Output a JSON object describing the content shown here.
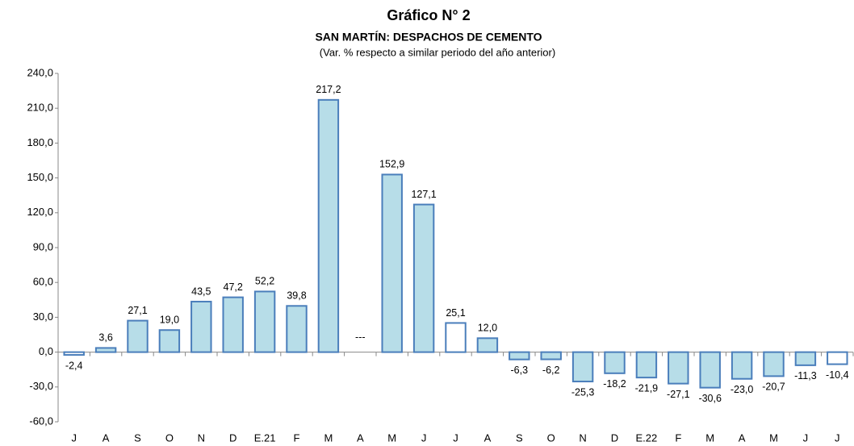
{
  "chart_data": {
    "type": "bar",
    "title": "Gráfico N° 2",
    "subtitle": "SAN MARTÍN: DESPACHOS DE CEMENTO",
    "note": "(Var. % respecto a similar periodo del año anterior)",
    "categories": [
      "J",
      "A",
      "S",
      "O",
      "N",
      "D",
      "E.21",
      "F",
      "M",
      "A",
      "M",
      "J",
      "J",
      "A",
      "S",
      "O",
      "N",
      "D",
      "E.22",
      "F",
      "M",
      "A",
      "M",
      "J",
      "J"
    ],
    "values": [
      -2.4,
      3.6,
      27.1,
      19.0,
      43.5,
      47.2,
      52.2,
      39.8,
      217.2,
      null,
      152.9,
      127.1,
      25.1,
      12.0,
      -6.3,
      -6.2,
      -25.3,
      -18.2,
      -21.9,
      -27.1,
      -30.6,
      -23.0,
      -20.7,
      -11.3,
      -10.4
    ],
    "value_labels": [
      "-2,4",
      "3,6",
      "27,1",
      "19,0",
      "43,5",
      "47,2",
      "52,2",
      "39,8",
      "217,2",
      "---",
      "152,9",
      "127,1",
      "25,1",
      "12,0",
      "-6,3",
      "-6,2",
      "-25,3",
      "-18,2",
      "-21,9",
      "-27,1",
      "-30,6",
      "-23,0",
      "-20,7",
      "-11,3",
      "-10,4"
    ],
    "colors": [
      "#ffffff",
      "#b7dde8",
      "#b7dde8",
      "#b7dde8",
      "#b7dde8",
      "#b7dde8",
      "#b7dde8",
      "#b7dde8",
      "#b7dde8",
      "#b7dde8",
      "#b7dde8",
      "#b7dde8",
      "#ffffff",
      "#b7dde8",
      "#b7dde8",
      "#b7dde8",
      "#b7dde8",
      "#b7dde8",
      "#b7dde8",
      "#b7dde8",
      "#b7dde8",
      "#b7dde8",
      "#b7dde8",
      "#b7dde8",
      "#ffffff"
    ],
    "border_color": "#4a7ebb",
    "ylim": [
      -60,
      240
    ],
    "yticks": [
      {
        "value": -60,
        "label": "-60,0"
      },
      {
        "value": -30,
        "label": "-30,0"
      },
      {
        "value": 0,
        "label": "0,0"
      },
      {
        "value": 30,
        "label": "30,0"
      },
      {
        "value": 60,
        "label": "60,0"
      },
      {
        "value": 90,
        "label": "90,0"
      },
      {
        "value": 120,
        "label": "120,0"
      },
      {
        "value": 150,
        "label": "150,0"
      },
      {
        "value": 180,
        "label": "180,0"
      },
      {
        "value": 210,
        "label": "210,0"
      },
      {
        "value": 240,
        "label": "240,0"
      }
    ],
    "grid": false
  }
}
